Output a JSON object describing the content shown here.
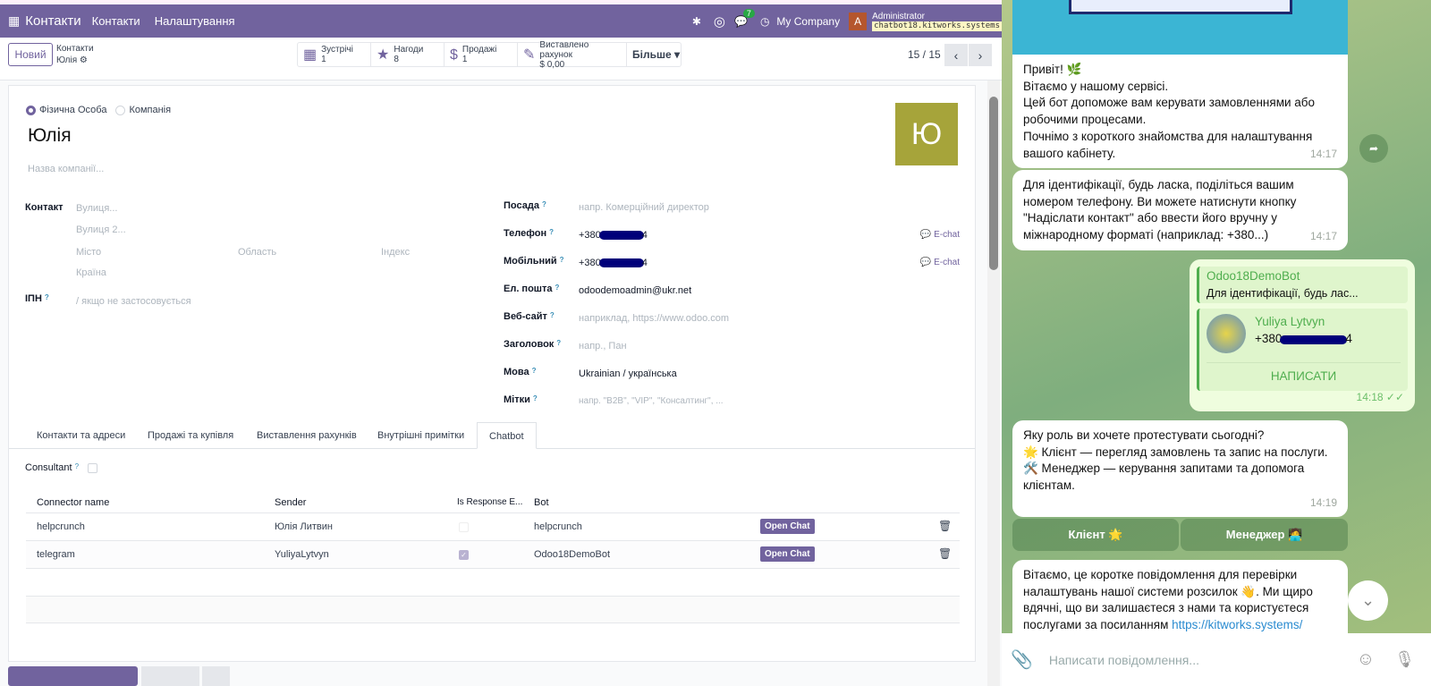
{
  "navbar": {
    "app": "Контакти",
    "menu": [
      "Контакти",
      "Налаштування"
    ],
    "messages_count": "7",
    "company": "My Company",
    "user_initial": "A",
    "user": "Administrator",
    "db": "chatbot18.kitworks.systems"
  },
  "control": {
    "new_label": "Новий",
    "breadcrumb_parent": "Контакти",
    "breadcrumb_current": "Юлія",
    "smart_buttons": [
      {
        "icon": "calendar-icon",
        "label": "Зустрічі",
        "value": "1"
      },
      {
        "icon": "star-icon",
        "label": "Нагоди",
        "value": "8"
      },
      {
        "icon": "dollar-icon",
        "label": "Продажі",
        "value": "1"
      },
      {
        "icon": "invoice-edit-icon",
        "label": "Виставлено рахунок",
        "value": "$ 0,00"
      }
    ],
    "more_label": "Більше",
    "pager": "15 / 15"
  },
  "form": {
    "type_person": "Фізична Особа",
    "type_company": "Компанія",
    "name": "Юлія",
    "avatar_letter": "Ю",
    "avatar_color": "#a6a43a",
    "company_placeholder": "Назва компанії...",
    "contact_label": "Контакт",
    "street_ph": "Вулиця...",
    "street2_ph": "Вулиця 2...",
    "city_ph": "Місто",
    "state_ph": "Область",
    "zip_ph": "Індекс",
    "country_ph": "Країна",
    "vat_label": "ІПН",
    "vat_ph": "/ якщо не застосовується",
    "right_fields": [
      {
        "label": "Посада",
        "value": "",
        "placeholder": "напр. Комерційний директор"
      },
      {
        "label": "Телефон",
        "value": "+380",
        "redacted": true,
        "suffix": "4",
        "action": "E-chat"
      },
      {
        "label": "Мобільний",
        "value": "+380",
        "redacted": true,
        "suffix": "4",
        "action": "E-chat"
      },
      {
        "label": "Ел. пошта",
        "value": "odoodemoadmin@ukr.net"
      },
      {
        "label": "Веб-сайт",
        "value": "",
        "placeholder": "наприклад, https://www.odoo.com"
      },
      {
        "label": "Заголовок",
        "value": "",
        "placeholder": "напр., Пан"
      },
      {
        "label": "Мова",
        "value": "Ukrainian / українська"
      },
      {
        "label": "Мітки",
        "value": "",
        "placeholder": "напр. \"B2B\", \"VIP\", \"Консалтинг\", ..."
      }
    ],
    "tabs": [
      "Контакти та адреси",
      "Продажі та купівля",
      "Виставлення рахунків",
      "Внутрішні примітки",
      "Chatbot"
    ],
    "active_tab": "Chatbot",
    "consultant_label": "Consultant",
    "consultant_checked": false,
    "table": {
      "headers": [
        "Connector name",
        "Sender",
        "Is Response E...",
        "Bot"
      ],
      "rows": [
        {
          "connector": "helpcrunch",
          "sender": "Юлія Литвин",
          "response": false,
          "bot": "helpcrunch",
          "action": "Open Chat"
        },
        {
          "connector": "telegram",
          "sender": "YuliyaLytvyn",
          "response": true,
          "bot": "Odoo18DemoBot",
          "action": "Open Chat"
        }
      ]
    }
  },
  "telegram": {
    "msg1": [
      "Привіт! 🌿",
      "Вітаємо у нашому сервісі.",
      "Цей бот допоможе вам керувати замовленнями або робочими процесами.",
      "Почнімо з короткого знайомства для налаштування вашого кабінету."
    ],
    "msg1_time": "14:17",
    "msg2": "Для ідентифікації, будь ласка, поділіться вашим номером телефону. Ви можете натиснути кнопку \"Надіслати контакт\" або ввести його вручну у міжнародному форматі (наприклад: +380...)",
    "msg2_time": "14:17",
    "reply_author": "Odoo18DemoBot",
    "reply_text": "Для ідентифікації, будь лас...",
    "contact_name": "Yuliya Lytvyn",
    "contact_phone": "+380",
    "contact_phone_suffix": "4",
    "contact_action": "НАПИСАТИ",
    "msg3_time": "14:18",
    "msg4": [
      "Яку роль ви хочете протестувати сьогодні?",
      "🌟 Клієнт — перегляд замовлень та запис на послуги.",
      "🛠️ Менеджер — керування запитами та допомога клієнтам."
    ],
    "msg4_time": "14:19",
    "kb_buttons": [
      "Клієнт 🌟",
      "Менеджер 🧑‍💻"
    ],
    "msg5": "Вітаємо, це коротке повідомлення для перевірки налаштувань нашої системи розсилок 👋. Ми щиро вдячні, що ви залишаєтеся з нами та користуєтеся послугами за посиланням ",
    "msg5_link": "https://kitworks.systems/",
    "input_placeholder": "Написати повідомлення..."
  }
}
